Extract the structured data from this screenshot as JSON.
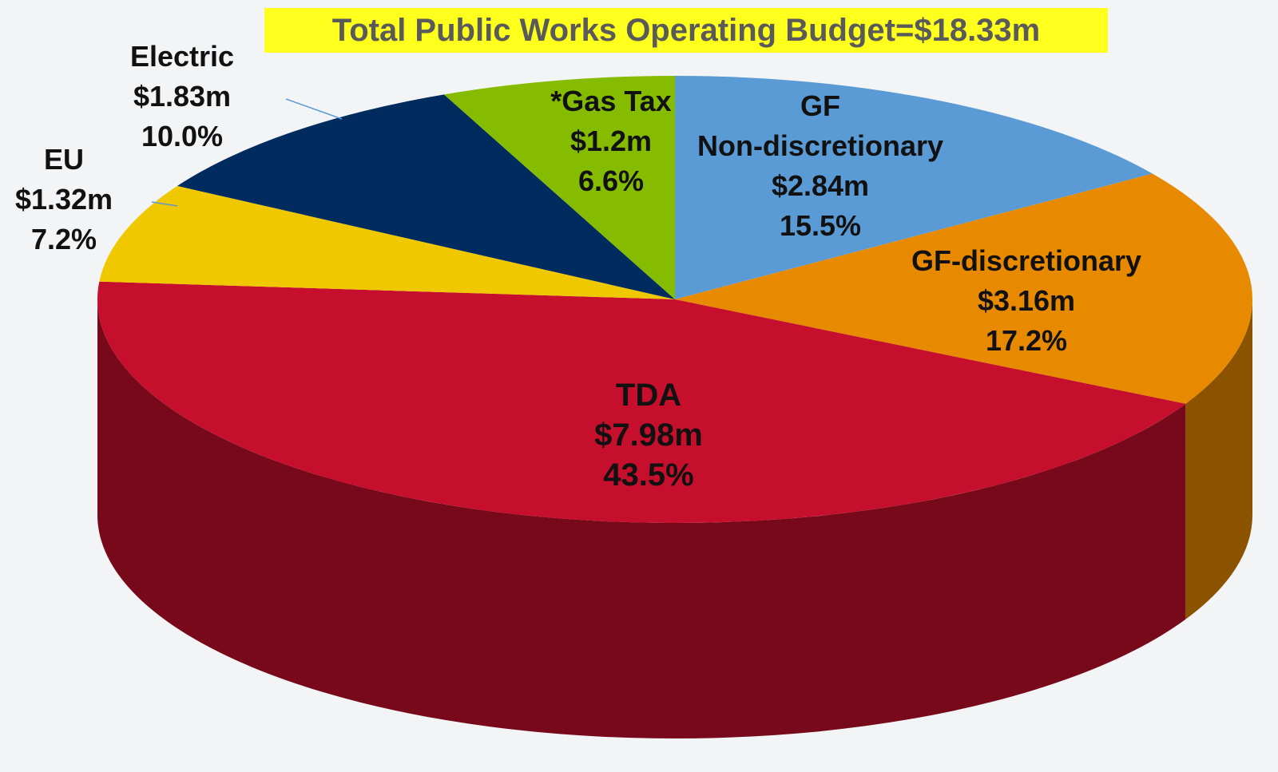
{
  "chart_data": {
    "type": "pie3d",
    "title": "Total Public Works Operating Budget=$18.33m",
    "categories": [
      "GF\nNon-discretionary",
      "GF-discretionary",
      "TDA",
      "EU",
      "Electric",
      "*Gas Tax"
    ],
    "values": [
      2.84,
      3.16,
      7.98,
      1.32,
      1.83,
      1.2
    ],
    "value_labels": [
      "$2.84m",
      "$3.16m",
      "$7.98m",
      "$1.32m",
      "$1.83m",
      "$1.2m"
    ],
    "percentages": [
      15.5,
      17.2,
      43.5,
      7.2,
      10.0,
      6.6
    ],
    "percentage_labels": [
      "15.5%",
      "17.2%",
      "43.5%",
      "7.2%",
      "10.0%",
      "6.6%"
    ],
    "colors": [
      "#5b9bd5",
      "#e88a00",
      "#c60f2c",
      "#f0c800",
      "#002b5e",
      "#86bc00"
    ]
  }
}
